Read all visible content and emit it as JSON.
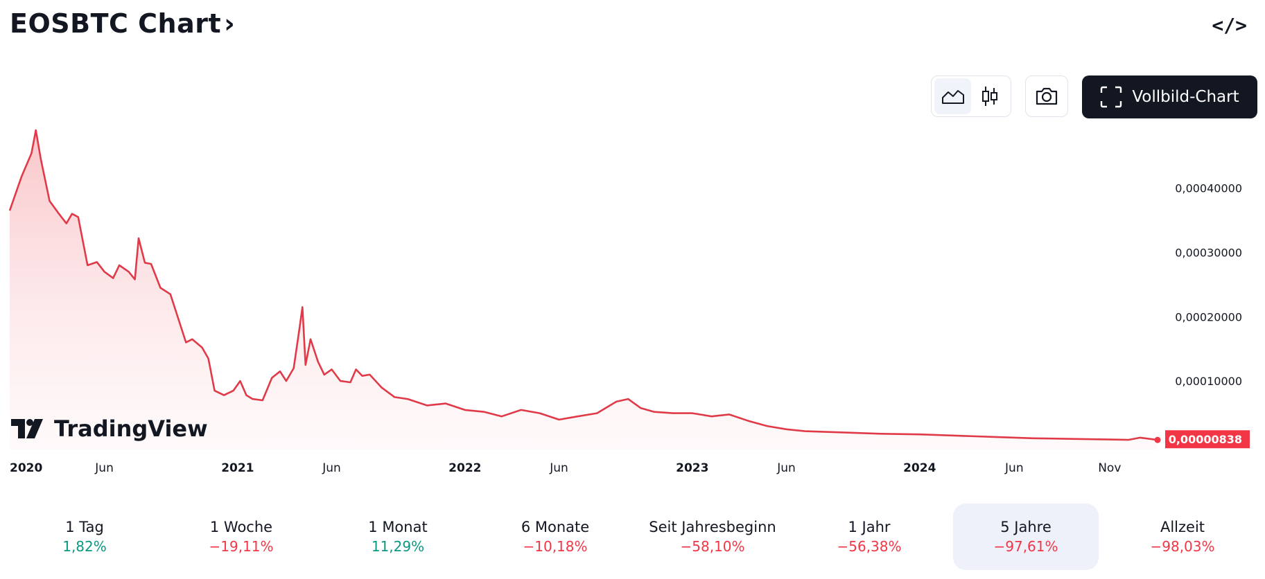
{
  "header": {
    "title": "EOSBTC Chart",
    "chevron": "›",
    "embed_icon": "</>"
  },
  "toolbar": {
    "area_icon": "area-chart-icon",
    "candle_icon": "candlestick-icon",
    "camera_icon": "camera-icon",
    "fullscreen_label": "Vollbild-Chart"
  },
  "logo": {
    "text": "TradingView"
  },
  "colors": {
    "line": "#e03a48",
    "accent": "#f23645",
    "positive": "#089981",
    "negative": "#f23645"
  },
  "chart_data": {
    "type": "area",
    "title": "EOSBTC",
    "x_ticks": [
      {
        "label": "2020",
        "x": "2020-01-01",
        "bold": true
      },
      {
        "label": "Jun",
        "x": "2020-06-01",
        "bold": false
      },
      {
        "label": "2021",
        "x": "2021-01-01",
        "bold": true
      },
      {
        "label": "Jun",
        "x": "2021-06-01",
        "bold": false
      },
      {
        "label": "2022",
        "x": "2022-01-01",
        "bold": true
      },
      {
        "label": "Jun",
        "x": "2022-06-01",
        "bold": false
      },
      {
        "label": "2023",
        "x": "2023-01-01",
        "bold": true
      },
      {
        "label": "Jun",
        "x": "2023-06-01",
        "bold": false
      },
      {
        "label": "2024",
        "x": "2024-01-01",
        "bold": true
      },
      {
        "label": "Jun",
        "x": "2024-06-01",
        "bold": false
      },
      {
        "label": "Nov",
        "x": "2024-11-01",
        "bold": false
      }
    ],
    "y_ticks": [
      {
        "label": "0,00010000",
        "value": 0.0001
      },
      {
        "label": "0,00020000",
        "value": 0.0002
      },
      {
        "label": "0,00030000",
        "value": 0.0003
      },
      {
        "label": "0,00040000",
        "value": 0.0004
      }
    ],
    "ylim": [
      0,
      0.00049
    ],
    "xlim": [
      "2020-01-01",
      "2025-01-17"
    ],
    "last_value_label": "0,00000838",
    "series": [
      {
        "values": [
          [
            "2020-01-01",
            0.000365
          ],
          [
            "2020-01-20",
            0.000418
          ],
          [
            "2020-02-05",
            0.000454
          ],
          [
            "2020-02-12",
            0.00049
          ],
          [
            "2020-02-20",
            0.000445
          ],
          [
            "2020-03-05",
            0.00038
          ],
          [
            "2020-03-20",
            0.00036
          ],
          [
            "2020-04-01",
            0.000345
          ],
          [
            "2020-04-10",
            0.00036
          ],
          [
            "2020-04-20",
            0.000355
          ],
          [
            "2020-05-05",
            0.00028
          ],
          [
            "2020-05-20",
            0.000285
          ],
          [
            "2020-06-01",
            0.00027
          ],
          [
            "2020-06-15",
            0.00026
          ],
          [
            "2020-06-25",
            0.00028
          ],
          [
            "2020-07-10",
            0.00027
          ],
          [
            "2020-07-20",
            0.000258
          ],
          [
            "2020-07-26",
            0.000322
          ],
          [
            "2020-08-05",
            0.000284
          ],
          [
            "2020-08-15",
            0.000282
          ],
          [
            "2020-08-30",
            0.000245
          ],
          [
            "2020-09-15",
            0.000235
          ],
          [
            "2020-09-25",
            0.000205
          ],
          [
            "2020-10-10",
            0.00016
          ],
          [
            "2020-10-20",
            0.000165
          ],
          [
            "2020-11-05",
            0.000152
          ],
          [
            "2020-11-15",
            0.000135
          ],
          [
            "2020-11-25",
            8.5e-05
          ],
          [
            "2020-12-10",
            7.8e-05
          ],
          [
            "2020-12-25",
            8.5e-05
          ],
          [
            "2021-01-05",
            0.0001
          ],
          [
            "2021-01-15",
            7.8e-05
          ],
          [
            "2021-01-25",
            7.2e-05
          ],
          [
            "2021-02-10",
            7e-05
          ],
          [
            "2021-02-25",
            0.000105
          ],
          [
            "2021-03-10",
            0.000115
          ],
          [
            "2021-03-20",
            0.0001
          ],
          [
            "2021-04-01",
            0.00012
          ],
          [
            "2021-04-10",
            0.00018
          ],
          [
            "2021-04-15",
            0.000215
          ],
          [
            "2021-04-20",
            0.000125
          ],
          [
            "2021-04-28",
            0.000165
          ],
          [
            "2021-05-10",
            0.00013
          ],
          [
            "2021-05-20",
            0.00011
          ],
          [
            "2021-06-01",
            0.000118
          ],
          [
            "2021-06-15",
            0.0001
          ],
          [
            "2021-07-01",
            9.8e-05
          ],
          [
            "2021-07-10",
            0.000118
          ],
          [
            "2021-07-20",
            0.000108
          ],
          [
            "2021-08-01",
            0.00011
          ],
          [
            "2021-08-20",
            9e-05
          ],
          [
            "2021-09-10",
            7.5e-05
          ],
          [
            "2021-10-01",
            7.2e-05
          ],
          [
            "2021-11-01",
            6.2e-05
          ],
          [
            "2021-12-01",
            6.5e-05
          ],
          [
            "2022-01-01",
            5.5e-05
          ],
          [
            "2022-02-01",
            5.2e-05
          ],
          [
            "2022-03-01",
            4.5e-05
          ],
          [
            "2022-04-01",
            5.5e-05
          ],
          [
            "2022-05-01",
            5e-05
          ],
          [
            "2022-06-01",
            4e-05
          ],
          [
            "2022-07-01",
            4.5e-05
          ],
          [
            "2022-08-01",
            5e-05
          ],
          [
            "2022-09-01",
            6.8e-05
          ],
          [
            "2022-09-20",
            7.2e-05
          ],
          [
            "2022-10-10",
            5.8e-05
          ],
          [
            "2022-11-01",
            5.2e-05
          ],
          [
            "2022-12-01",
            5e-05
          ],
          [
            "2023-01-01",
            5e-05
          ],
          [
            "2023-02-01",
            4.5e-05
          ],
          [
            "2023-03-01",
            4.8e-05
          ],
          [
            "2023-04-01",
            3.8e-05
          ],
          [
            "2023-05-01",
            3e-05
          ],
          [
            "2023-06-01",
            2.5e-05
          ],
          [
            "2023-07-01",
            2.2e-05
          ],
          [
            "2023-09-01",
            2e-05
          ],
          [
            "2023-11-01",
            1.8e-05
          ],
          [
            "2024-01-01",
            1.7e-05
          ],
          [
            "2024-03-01",
            1.5e-05
          ],
          [
            "2024-05-01",
            1.3e-05
          ],
          [
            "2024-07-01",
            1.1e-05
          ],
          [
            "2024-09-01",
            1e-05
          ],
          [
            "2024-11-01",
            9e-06
          ],
          [
            "2024-12-01",
            8.5e-06
          ],
          [
            "2024-12-20",
            1.2e-05
          ],
          [
            "2025-01-17",
            8.38e-06
          ]
        ]
      }
    ]
  },
  "periods": [
    {
      "label": "1 Tag",
      "value": "1,82%",
      "trend": "pos",
      "active": false
    },
    {
      "label": "1 Woche",
      "value": "−19,11%",
      "trend": "neg",
      "active": false
    },
    {
      "label": "1 Monat",
      "value": "11,29%",
      "trend": "pos",
      "active": false
    },
    {
      "label": "6 Monate",
      "value": "−10,18%",
      "trend": "neg",
      "active": false
    },
    {
      "label": "Seit Jahresbeginn",
      "value": "−58,10%",
      "trend": "neg",
      "active": false
    },
    {
      "label": "1 Jahr",
      "value": "−56,38%",
      "trend": "neg",
      "active": false
    },
    {
      "label": "5 Jahre",
      "value": "−97,61%",
      "trend": "neg",
      "active": true
    },
    {
      "label": "Allzeit",
      "value": "−98,03%",
      "trend": "neg",
      "active": false
    }
  ]
}
